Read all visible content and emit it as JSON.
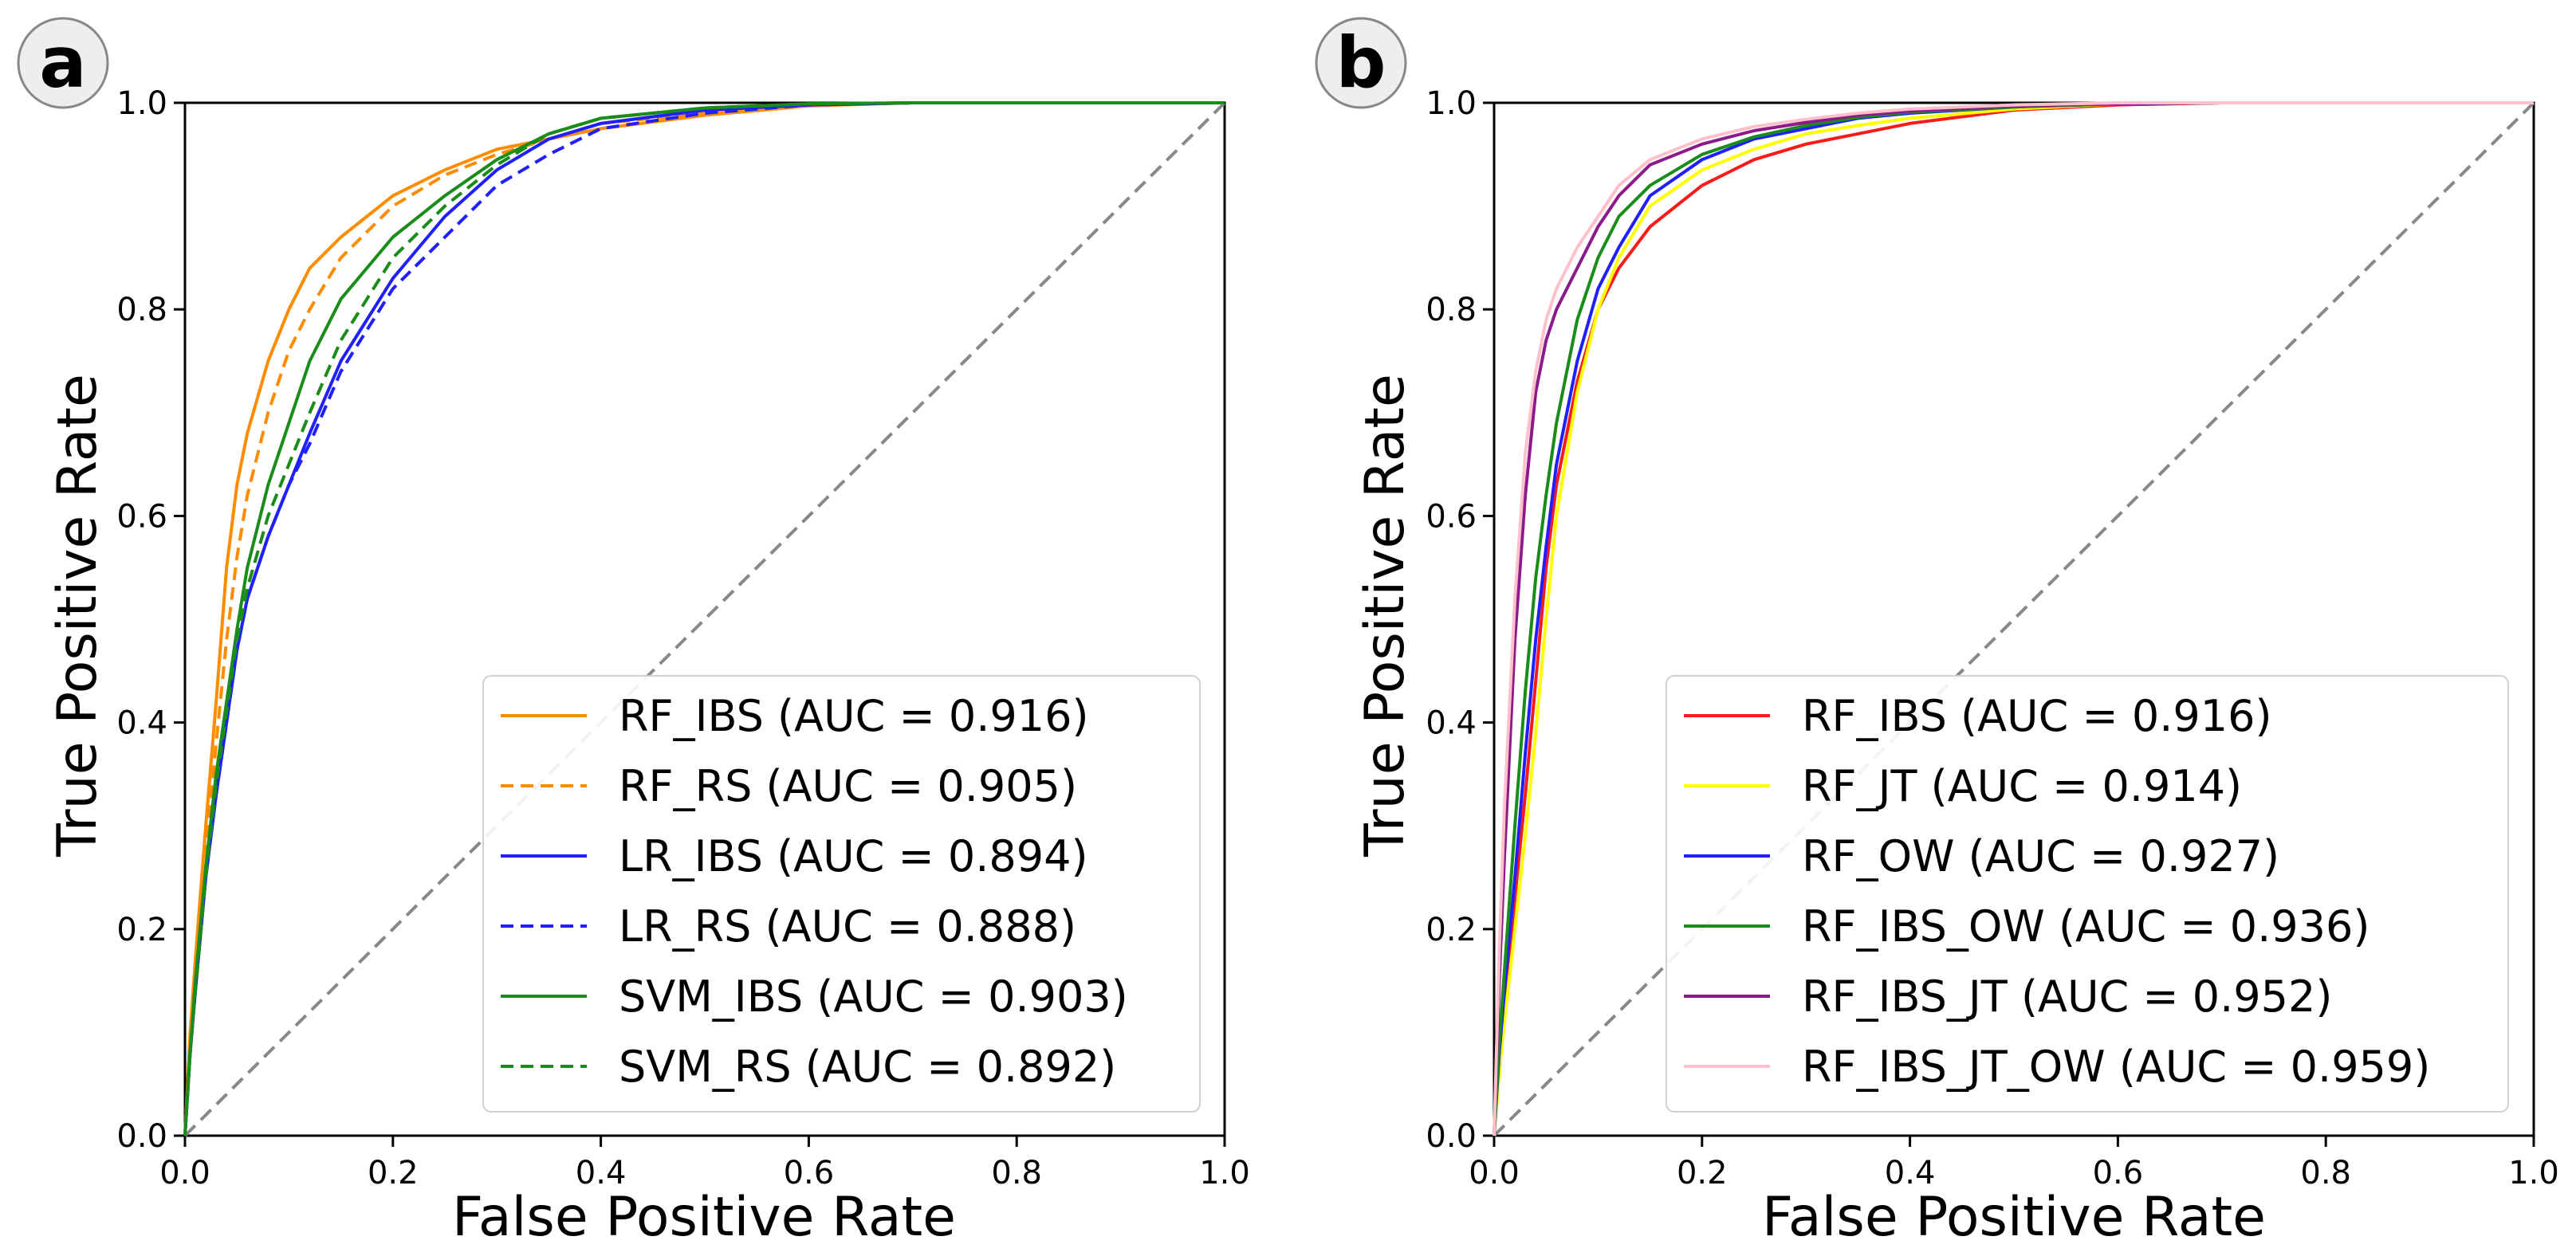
{
  "chart_data": [
    {
      "panel": "a",
      "type": "line",
      "title": "",
      "xlabel": "False Positive Rate",
      "ylabel": "True Positive Rate",
      "xlim": [
        0.0,
        1.0
      ],
      "ylim": [
        0.0,
        1.0
      ],
      "xticks": [
        "0.0",
        "0.2",
        "0.4",
        "0.6",
        "0.8",
        "1.0"
      ],
      "yticks": [
        "0.0",
        "0.2",
        "0.4",
        "0.6",
        "0.8",
        "1.0"
      ],
      "grid": false,
      "legend_position": "lower-right",
      "diagonal": {
        "color": "#888888",
        "style": "dashed"
      },
      "series": [
        {
          "name": "RF_IBS (AUC = 0.916)",
          "color": "#ff8c00",
          "style": "solid",
          "x": [
            0,
            0.005,
            0.01,
            0.02,
            0.03,
            0.04,
            0.05,
            0.06,
            0.08,
            0.1,
            0.12,
            0.15,
            0.2,
            0.25,
            0.3,
            0.35,
            0.4,
            0.5,
            0.6,
            0.7,
            0.8,
            0.9,
            1.0
          ],
          "y": [
            0,
            0.1,
            0.17,
            0.3,
            0.42,
            0.55,
            0.63,
            0.68,
            0.75,
            0.8,
            0.84,
            0.87,
            0.91,
            0.935,
            0.955,
            0.965,
            0.975,
            0.988,
            0.997,
            1.0,
            1.0,
            1.0,
            1.0
          ]
        },
        {
          "name": "RF_RS (AUC = 0.905)",
          "color": "#ff8c00",
          "style": "dashed",
          "x": [
            0,
            0.005,
            0.01,
            0.02,
            0.03,
            0.04,
            0.05,
            0.06,
            0.08,
            0.1,
            0.12,
            0.15,
            0.2,
            0.25,
            0.3,
            0.35,
            0.4,
            0.5,
            0.6,
            0.7,
            0.8,
            0.9,
            1.0
          ],
          "y": [
            0,
            0.09,
            0.15,
            0.27,
            0.38,
            0.48,
            0.56,
            0.62,
            0.7,
            0.76,
            0.8,
            0.85,
            0.9,
            0.93,
            0.95,
            0.965,
            0.98,
            0.99,
            0.998,
            1.0,
            1.0,
            1.0,
            1.0
          ]
        },
        {
          "name": "LR_IBS (AUC = 0.894)",
          "color": "#1f1fff",
          "style": "solid",
          "x": [
            0,
            0.005,
            0.01,
            0.02,
            0.03,
            0.04,
            0.05,
            0.06,
            0.08,
            0.1,
            0.12,
            0.15,
            0.2,
            0.25,
            0.3,
            0.35,
            0.4,
            0.5,
            0.6,
            0.7,
            0.8,
            0.9,
            1.0
          ],
          "y": [
            0,
            0.08,
            0.14,
            0.25,
            0.33,
            0.4,
            0.47,
            0.52,
            0.58,
            0.63,
            0.68,
            0.75,
            0.83,
            0.89,
            0.935,
            0.965,
            0.98,
            0.993,
            0.998,
            1.0,
            1.0,
            1.0,
            1.0
          ]
        },
        {
          "name": "LR_RS (AUC = 0.888)",
          "color": "#1f1fff",
          "style": "dashed",
          "x": [
            0,
            0.005,
            0.01,
            0.02,
            0.03,
            0.04,
            0.05,
            0.06,
            0.08,
            0.1,
            0.12,
            0.15,
            0.2,
            0.25,
            0.3,
            0.35,
            0.4,
            0.5,
            0.6,
            0.7,
            0.8,
            0.9,
            1.0
          ],
          "y": [
            0,
            0.08,
            0.14,
            0.25,
            0.33,
            0.4,
            0.47,
            0.52,
            0.58,
            0.63,
            0.67,
            0.74,
            0.82,
            0.87,
            0.92,
            0.95,
            0.975,
            0.99,
            0.998,
            1.0,
            1.0,
            1.0,
            1.0
          ]
        },
        {
          "name": "SVM_IBS (AUC = 0.903)",
          "color": "#1a8c1a",
          "style": "solid",
          "x": [
            0,
            0.005,
            0.01,
            0.02,
            0.03,
            0.04,
            0.05,
            0.06,
            0.08,
            0.1,
            0.12,
            0.15,
            0.2,
            0.25,
            0.3,
            0.35,
            0.4,
            0.5,
            0.6,
            0.7,
            0.8,
            0.9,
            1.0
          ],
          "y": [
            0,
            0.08,
            0.15,
            0.26,
            0.35,
            0.42,
            0.49,
            0.55,
            0.63,
            0.69,
            0.75,
            0.81,
            0.87,
            0.91,
            0.945,
            0.97,
            0.985,
            0.995,
            0.999,
            1.0,
            1.0,
            1.0,
            1.0
          ]
        },
        {
          "name": "SVM_RS (AUC = 0.892)",
          "color": "#1a8c1a",
          "style": "dashed",
          "x": [
            0,
            0.005,
            0.01,
            0.02,
            0.03,
            0.04,
            0.05,
            0.06,
            0.08,
            0.1,
            0.12,
            0.15,
            0.2,
            0.25,
            0.3,
            0.35,
            0.4,
            0.5,
            0.6,
            0.7,
            0.8,
            0.9,
            1.0
          ],
          "y": [
            0,
            0.08,
            0.14,
            0.25,
            0.34,
            0.41,
            0.48,
            0.53,
            0.6,
            0.65,
            0.7,
            0.77,
            0.85,
            0.9,
            0.94,
            0.97,
            0.985,
            0.995,
            0.999,
            1.0,
            1.0,
            1.0,
            1.0
          ]
        }
      ]
    },
    {
      "panel": "b",
      "type": "line",
      "title": "",
      "xlabel": "False Positive Rate",
      "ylabel": "True Positive Rate",
      "xlim": [
        0.0,
        1.0
      ],
      "ylim": [
        0.0,
        1.0
      ],
      "xticks": [
        "0.0",
        "0.2",
        "0.4",
        "0.6",
        "0.8",
        "1.0"
      ],
      "yticks": [
        "0.0",
        "0.2",
        "0.4",
        "0.6",
        "0.8",
        "1.0"
      ],
      "grid": false,
      "legend_position": "lower-right",
      "diagonal": {
        "color": "#888888",
        "style": "dashed"
      },
      "series": [
        {
          "name": "RF_IBS (AUC = 0.916)",
          "color": "#ff1a1a",
          "style": "solid",
          "x": [
            0,
            0.005,
            0.01,
            0.02,
            0.03,
            0.04,
            0.05,
            0.06,
            0.08,
            0.1,
            0.12,
            0.15,
            0.2,
            0.25,
            0.3,
            0.35,
            0.4,
            0.5,
            0.6,
            0.7,
            0.8,
            0.9,
            1.0
          ],
          "y": [
            0,
            0.07,
            0.13,
            0.23,
            0.33,
            0.44,
            0.55,
            0.63,
            0.73,
            0.8,
            0.84,
            0.88,
            0.92,
            0.945,
            0.96,
            0.97,
            0.98,
            0.993,
            0.998,
            1.0,
            1.0,
            1.0,
            1.0
          ]
        },
        {
          "name": "RF_JT (AUC = 0.914)",
          "color": "#ffff00",
          "style": "solid",
          "x": [
            0,
            0.005,
            0.01,
            0.02,
            0.03,
            0.04,
            0.05,
            0.06,
            0.08,
            0.1,
            0.12,
            0.15,
            0.2,
            0.25,
            0.3,
            0.35,
            0.4,
            0.5,
            0.6,
            0.7,
            0.8,
            0.9,
            1.0
          ],
          "y": [
            0,
            0.06,
            0.11,
            0.2,
            0.29,
            0.39,
            0.5,
            0.6,
            0.72,
            0.8,
            0.85,
            0.9,
            0.935,
            0.955,
            0.97,
            0.978,
            0.985,
            0.994,
            0.999,
            1.0,
            1.0,
            1.0,
            1.0
          ]
        },
        {
          "name": "RF_OW (AUC = 0.927)",
          "color": "#1f1fff",
          "style": "solid",
          "x": [
            0,
            0.005,
            0.01,
            0.02,
            0.03,
            0.04,
            0.05,
            0.06,
            0.08,
            0.1,
            0.12,
            0.15,
            0.2,
            0.25,
            0.3,
            0.35,
            0.4,
            0.5,
            0.6,
            0.7,
            0.8,
            0.9,
            1.0
          ],
          "y": [
            0,
            0.08,
            0.14,
            0.25,
            0.37,
            0.48,
            0.57,
            0.65,
            0.75,
            0.82,
            0.86,
            0.91,
            0.945,
            0.965,
            0.975,
            0.985,
            0.99,
            0.996,
            0.999,
            1.0,
            1.0,
            1.0,
            1.0
          ]
        },
        {
          "name": "RF_IBS_OW (AUC = 0.936)",
          "color": "#1a8c1a",
          "style": "solid",
          "x": [
            0,
            0.005,
            0.01,
            0.02,
            0.03,
            0.04,
            0.05,
            0.06,
            0.08,
            0.1,
            0.12,
            0.15,
            0.2,
            0.25,
            0.3,
            0.35,
            0.4,
            0.5,
            0.6,
            0.7,
            0.8,
            0.9,
            1.0
          ],
          "y": [
            0,
            0.09,
            0.16,
            0.3,
            0.43,
            0.54,
            0.62,
            0.69,
            0.79,
            0.85,
            0.89,
            0.92,
            0.95,
            0.967,
            0.978,
            0.986,
            0.991,
            0.996,
            0.999,
            1.0,
            1.0,
            1.0,
            1.0
          ]
        },
        {
          "name": "RF_IBS_JT (AUC = 0.952)",
          "color": "#8b1a8b",
          "style": "solid",
          "x": [
            0,
            0.005,
            0.01,
            0.02,
            0.03,
            0.04,
            0.05,
            0.06,
            0.08,
            0.1,
            0.12,
            0.15,
            0.2,
            0.25,
            0.3,
            0.35,
            0.4,
            0.5,
            0.6,
            0.7,
            0.8,
            0.9,
            1.0
          ],
          "y": [
            0,
            0.15,
            0.27,
            0.48,
            0.62,
            0.72,
            0.77,
            0.8,
            0.84,
            0.88,
            0.91,
            0.94,
            0.96,
            0.973,
            0.981,
            0.988,
            0.992,
            0.997,
            0.999,
            1.0,
            1.0,
            1.0,
            1.0
          ]
        },
        {
          "name": "RF_IBS_JT_OW (AUC = 0.959)",
          "color": "#ffc0cb",
          "style": "solid",
          "x": [
            0,
            0.005,
            0.01,
            0.02,
            0.03,
            0.04,
            0.05,
            0.06,
            0.08,
            0.1,
            0.12,
            0.15,
            0.2,
            0.25,
            0.3,
            0.35,
            0.4,
            0.5,
            0.6,
            0.7,
            0.8,
            0.9,
            1.0
          ],
          "y": [
            0,
            0.18,
            0.32,
            0.52,
            0.66,
            0.74,
            0.79,
            0.82,
            0.86,
            0.89,
            0.92,
            0.945,
            0.965,
            0.977,
            0.984,
            0.99,
            0.994,
            0.998,
            1.0,
            1.0,
            1.0,
            1.0,
            1.0
          ]
        }
      ]
    }
  ]
}
